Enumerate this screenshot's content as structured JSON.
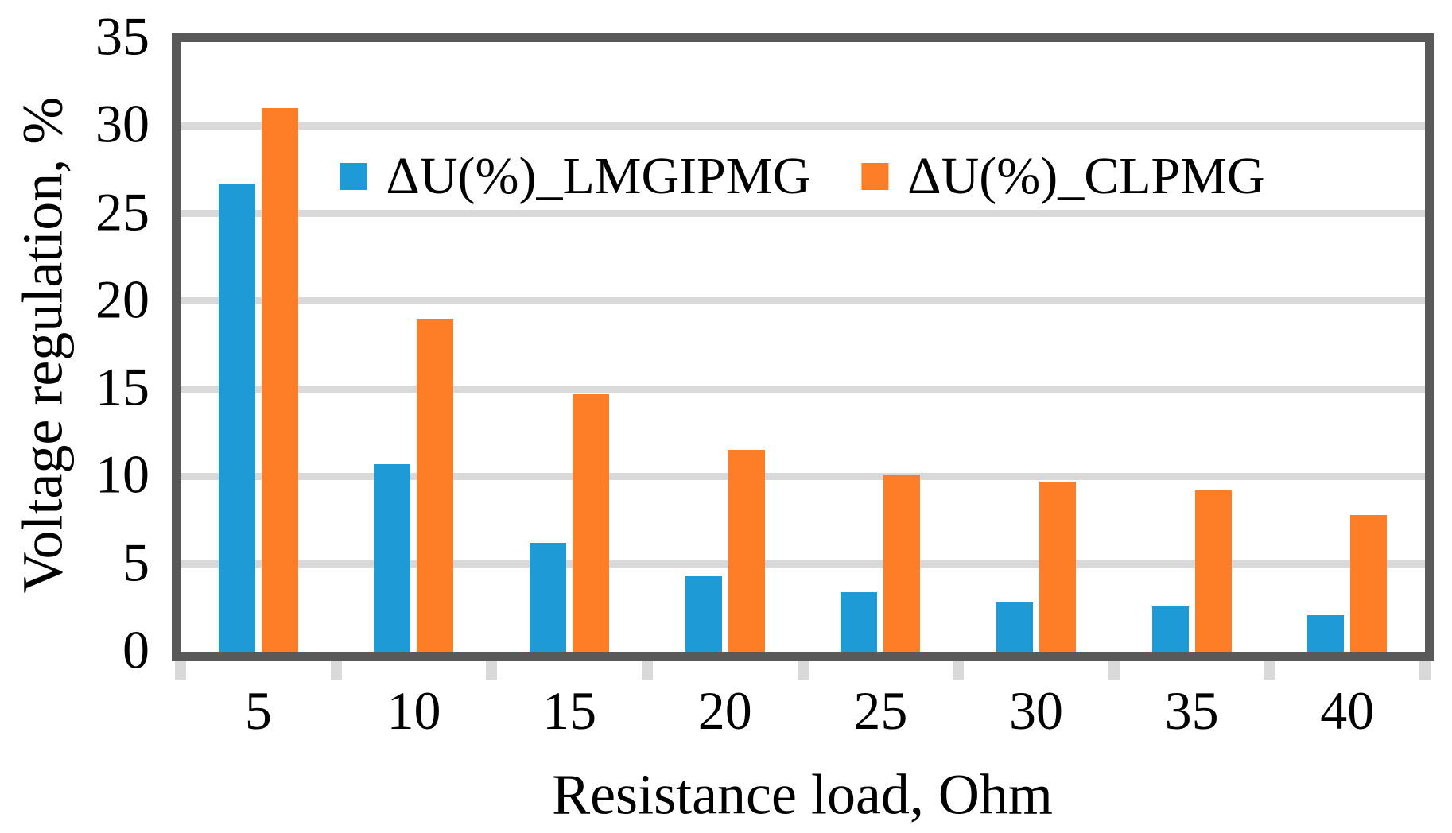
{
  "chart_data": {
    "type": "bar",
    "title": "",
    "xlabel": "Resistance load, Ohm",
    "ylabel": "Voltage regulation, %",
    "categories": [
      "5",
      "10",
      "15",
      "20",
      "25",
      "30",
      "35",
      "40"
    ],
    "series": [
      {
        "name": "ΔU(%)_LMGIPMG",
        "color": "#1E9BD7",
        "values": [
          26.7,
          10.7,
          6.2,
          4.3,
          3.4,
          2.8,
          2.6,
          2.1
        ]
      },
      {
        "name": "ΔU(%)_CLPMG",
        "color": "#FD7E26",
        "values": [
          31.0,
          19.0,
          14.7,
          11.5,
          10.1,
          9.7,
          9.2,
          7.8
        ]
      }
    ],
    "ylim": [
      0,
      35
    ],
    "ytick_step": 5,
    "yticks": [
      "0",
      "5",
      "10",
      "15",
      "20",
      "25",
      "30",
      "35"
    ],
    "grid": true,
    "legend_position": "top-center-inside",
    "axis_color": "#595959",
    "gridline_color": "#D9D9D9",
    "tick_color": "#D9D9D9",
    "plot_background": "#FFFFFF"
  }
}
